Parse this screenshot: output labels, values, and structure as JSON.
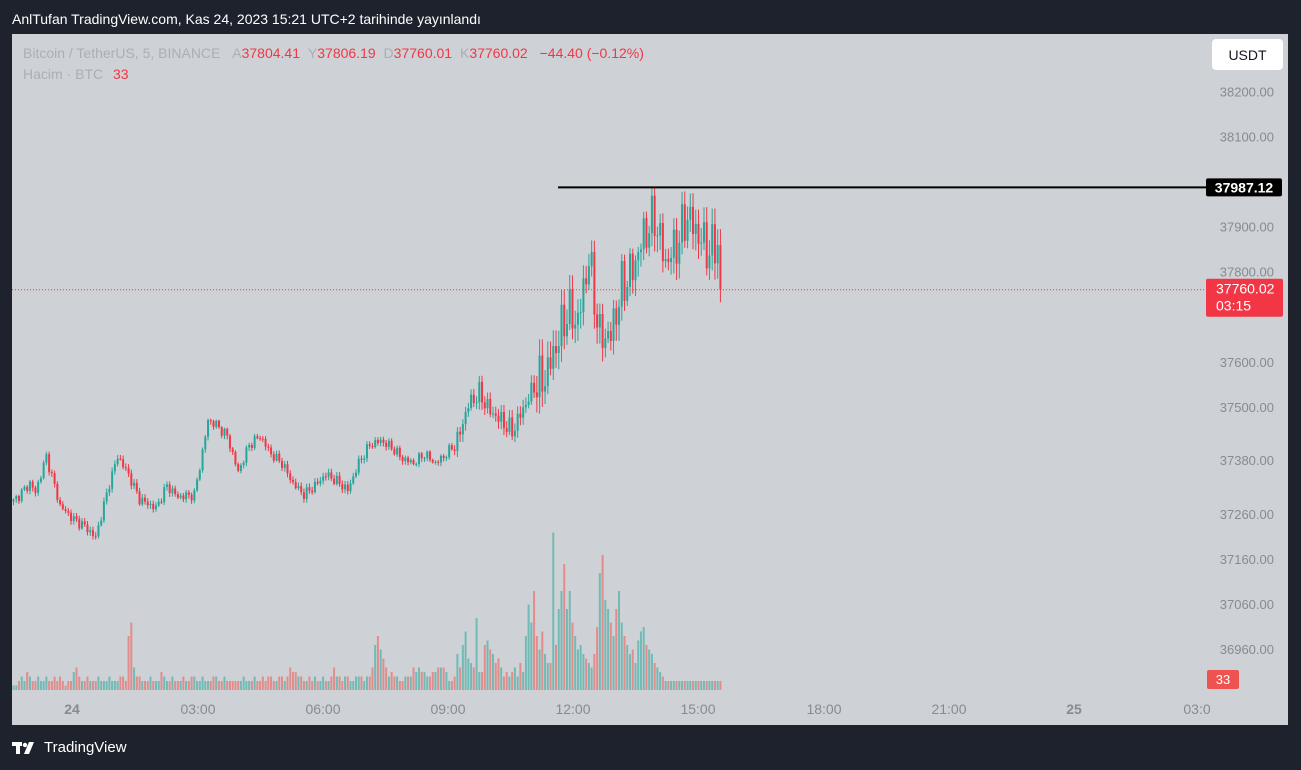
{
  "header": {
    "title": "AnlTufan TradingView.com, Kas 24, 2023 15:21 UTC+2 tarihinde yayınlandı"
  },
  "legend": {
    "symbol": "Bitcoin / TetherUS, 5, BINANCE",
    "open_label": "A",
    "open": "37804.41",
    "high_label": "Y",
    "high": "37806.19",
    "low_label": "D",
    "low": "37760.01",
    "close_label": "K",
    "close": "37760.02",
    "change": "−44.40 (−0.12%)",
    "volume_label": "Hacim · BTC",
    "volume_value": "33"
  },
  "currency_button": "USDT",
  "footer": {
    "brand": "TradingView"
  },
  "colors": {
    "up": "#26a69a",
    "down": "#f23645",
    "background": "#ced2d6",
    "frame": "#1e222d"
  },
  "chart_data": {
    "type": "candlestick",
    "title": "Bitcoin / TetherUS, 5, BINANCE",
    "y_axis": {
      "ticks": [
        "38200.00",
        "38100.00",
        "37900.00",
        "37800.00",
        "37600.00",
        "37500.00",
        "37380.00",
        "37260.00",
        "37160.00",
        "37060.00",
        "36960.00"
      ],
      "ylim": [
        36880,
        38300
      ]
    },
    "x_axis": {
      "ticks": [
        "24",
        "03:00",
        "06:00",
        "09:00",
        "12:00",
        "15:00",
        "18:00",
        "21:00",
        "25",
        "03:0"
      ]
    },
    "horizontal_line": {
      "value": 37987.12,
      "label": "37987.12"
    },
    "last_price": {
      "value": 37760.02,
      "label": "37760.02",
      "countdown": "03:15"
    },
    "volume_badge": "33",
    "anchors": [
      [
        0,
        37290
      ],
      [
        6,
        37330
      ],
      [
        8,
        37310
      ],
      [
        12,
        37390
      ],
      [
        17,
        37280
      ],
      [
        22,
        37250
      ],
      [
        26,
        37235
      ],
      [
        30,
        37210
      ],
      [
        35,
        37330
      ],
      [
        38,
        37390
      ],
      [
        42,
        37350
      ],
      [
        46,
        37295
      ],
      [
        52,
        37275
      ],
      [
        56,
        37325
      ],
      [
        60,
        37300
      ],
      [
        66,
        37305
      ],
      [
        69,
        37400
      ],
      [
        71,
        37470
      ],
      [
        74,
        37460
      ],
      [
        78,
        37435
      ],
      [
        82,
        37355
      ],
      [
        86,
        37415
      ],
      [
        90,
        37435
      ],
      [
        94,
        37395
      ],
      [
        98,
        37375
      ],
      [
        102,
        37330
      ],
      [
        106,
        37305
      ],
      [
        110,
        37325
      ],
      [
        114,
        37350
      ],
      [
        118,
        37335
      ],
      [
        122,
        37315
      ],
      [
        126,
        37375
      ],
      [
        130,
        37415
      ],
      [
        134,
        37425
      ],
      [
        138,
        37410
      ],
      [
        142,
        37385
      ],
      [
        146,
        37375
      ],
      [
        150,
        37395
      ],
      [
        154,
        37375
      ],
      [
        158,
        37395
      ],
      [
        162,
        37425
      ],
      [
        166,
        37505
      ],
      [
        170,
        37530
      ],
      [
        174,
        37490
      ],
      [
        178,
        37470
      ],
      [
        182,
        37445
      ],
      [
        186,
        37495
      ],
      [
        190,
        37545
      ],
      [
        194,
        37565
      ],
      [
        198,
        37635
      ],
      [
        202,
        37710
      ],
      [
        206,
        37690
      ],
      [
        210,
        37830
      ],
      [
        214,
        37655
      ],
      [
        218,
        37660
      ],
      [
        222,
        37765
      ],
      [
        226,
        37805
      ],
      [
        230,
        37880
      ],
      [
        234,
        37920
      ],
      [
        238,
        37820
      ],
      [
        242,
        37860
      ],
      [
        246,
        37925
      ],
      [
        250,
        37880
      ],
      [
        254,
        37845
      ],
      [
        258,
        37870
      ]
    ],
    "volumes": [
      1,
      1,
      2,
      3,
      2,
      4,
      3,
      2,
      2,
      3,
      2,
      2,
      3,
      2,
      2,
      3,
      2,
      3,
      2,
      1,
      2,
      2,
      4,
      5,
      3,
      2,
      2,
      3,
      2,
      2,
      2,
      3,
      2,
      2,
      2,
      3,
      2,
      2,
      2,
      3,
      3,
      2,
      12,
      15,
      5,
      3,
      3,
      2,
      2,
      2,
      3,
      2,
      2,
      2,
      4,
      3,
      2,
      2,
      3,
      2,
      2,
      2,
      3,
      2,
      2,
      3,
      3,
      2,
      2,
      3,
      2,
      2,
      2,
      3,
      3,
      2,
      2,
      3,
      2,
      2,
      2,
      2,
      2,
      2,
      3,
      2,
      2,
      2,
      3,
      2,
      2,
      3,
      2,
      3,
      3,
      2,
      2,
      3,
      3,
      2,
      3,
      5,
      4,
      4,
      3,
      3,
      2,
      2,
      3,
      2,
      3,
      2,
      2,
      3,
      2,
      2,
      3,
      5,
      3,
      3,
      2,
      3,
      3,
      2,
      2,
      3,
      3,
      3,
      2,
      3,
      3,
      5,
      10,
      12,
      9,
      7,
      5,
      3,
      4,
      3,
      3,
      2,
      2,
      3,
      3,
      3,
      5,
      4,
      5,
      4,
      4,
      3,
      3,
      4,
      4,
      5,
      5,
      5,
      4,
      2,
      2,
      3,
      8,
      5,
      10,
      13,
      7,
      6,
      5,
      16,
      4,
      4,
      10,
      11,
      9,
      8,
      6,
      7,
      5,
      3,
      4,
      3,
      4,
      5,
      3,
      6,
      4,
      12,
      19,
      15,
      22,
      12,
      9,
      13,
      8,
      6,
      6,
      35,
      10,
      18,
      22,
      28,
      18,
      22,
      15,
      12,
      9,
      10,
      8,
      7,
      6,
      5,
      8,
      14,
      26,
      30,
      20,
      18,
      15,
      12,
      18,
      22,
      15,
      12,
      10,
      8,
      9,
      6,
      11,
      13,
      14,
      10,
      9,
      8,
      6,
      5,
      4,
      3,
      2
    ]
  }
}
